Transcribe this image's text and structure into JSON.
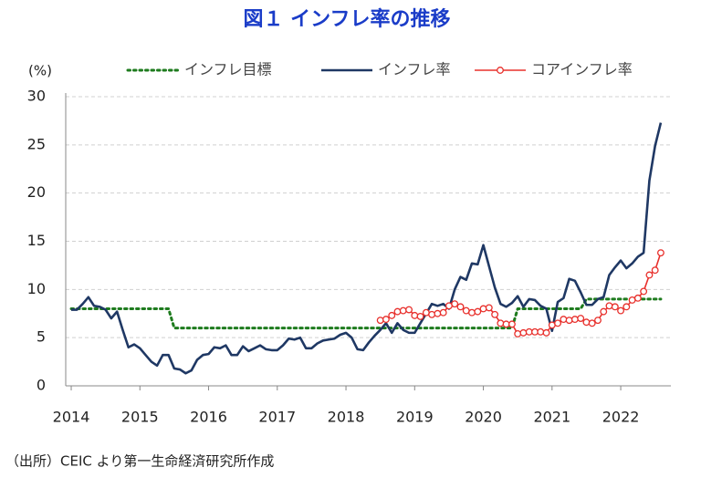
{
  "chart_data": {
    "type": "line",
    "title": "図１ インフレ率の推移",
    "y_label": "(%)",
    "source": "（出所）CEIC より第一生命経済研究所作成",
    "x": [
      2014,
      2014.083,
      2014.167,
      2014.25,
      2014.333,
      2014.417,
      2014.5,
      2014.583,
      2014.667,
      2014.75,
      2014.833,
      2014.917,
      2015,
      2015.083,
      2015.167,
      2015.25,
      2015.333,
      2015.417,
      2015.5,
      2015.583,
      2015.667,
      2015.75,
      2015.833,
      2015.917,
      2016,
      2016.083,
      2016.167,
      2016.25,
      2016.333,
      2016.417,
      2016.5,
      2016.583,
      2016.667,
      2016.75,
      2016.833,
      2016.917,
      2017,
      2017.083,
      2017.167,
      2017.25,
      2017.333,
      2017.417,
      2017.5,
      2017.583,
      2017.667,
      2017.75,
      2017.833,
      2017.917,
      2018,
      2018.083,
      2018.167,
      2018.25,
      2018.333,
      2018.417,
      2018.5,
      2018.583,
      2018.667,
      2018.75,
      2018.833,
      2018.917,
      2019,
      2019.083,
      2019.167,
      2019.25,
      2019.333,
      2019.417,
      2019.5,
      2019.583,
      2019.667,
      2019.75,
      2019.833,
      2019.917,
      2020,
      2020.083,
      2020.167,
      2020.25,
      2020.333,
      2020.417,
      2020.5,
      2020.583,
      2020.667,
      2020.75,
      2020.833,
      2020.917,
      2021,
      2021.083,
      2021.167,
      2021.25,
      2021.333,
      2021.417,
      2021.5,
      2021.583,
      2021.667,
      2021.75,
      2021.833,
      2021.917,
      2022,
      2022.083,
      2022.167,
      2022.25,
      2022.333,
      2022.417,
      2022.5,
      2022.583
    ],
    "series": [
      {
        "name": "インフレ目標",
        "color": "#1e7b1e",
        "line_style": "dotted",
        "markers": false,
        "values": [
          8,
          8,
          8,
          8,
          8,
          8,
          8,
          8,
          8,
          8,
          8,
          8,
          8,
          8,
          8,
          8,
          8,
          8,
          6,
          6,
          6,
          6,
          6,
          6,
          6,
          6,
          6,
          6,
          6,
          6,
          6,
          6,
          6,
          6,
          6,
          6,
          6,
          6,
          6,
          6,
          6,
          6,
          6,
          6,
          6,
          6,
          6,
          6,
          6,
          6,
          6,
          6,
          6,
          6,
          6,
          6,
          6,
          6,
          6,
          6,
          6,
          6,
          6,
          6,
          6,
          6,
          6,
          6,
          6,
          6,
          6,
          6,
          6,
          6,
          6,
          6,
          6,
          6,
          8,
          8,
          8,
          8,
          8,
          8,
          8,
          8,
          8,
          8,
          8,
          8,
          9,
          9,
          9,
          9,
          9,
          9,
          9,
          9,
          9,
          9,
          9,
          9,
          9,
          9
        ]
      },
      {
        "name": "インフレ率",
        "color": "#1f3864",
        "line_style": "solid",
        "markers": false,
        "values": [
          7.9,
          7.9,
          8.5,
          9.2,
          8.3,
          8.2,
          7.9,
          7.0,
          7.7,
          5.8,
          4.0,
          4.3,
          3.9,
          3.2,
          2.5,
          2.1,
          3.2,
          3.2,
          1.8,
          1.7,
          1.3,
          1.6,
          2.7,
          3.2,
          3.3,
          4.0,
          3.9,
          4.2,
          3.2,
          3.2,
          4.1,
          3.6,
          3.9,
          4.2,
          3.8,
          3.7,
          3.7,
          4.2,
          4.9,
          4.8,
          5.0,
          3.9,
          3.9,
          4.4,
          4.7,
          4.8,
          4.9,
          5.3,
          5.5,
          5.0,
          3.8,
          3.7,
          4.5,
          5.2,
          5.8,
          6.5,
          5.5,
          6.5,
          5.8,
          5.5,
          5.5,
          6.5,
          7.5,
          8.5,
          8.3,
          8.5,
          8.0,
          10.0,
          11.3,
          11.0,
          12.7,
          12.6,
          14.6,
          12.4,
          10.2,
          8.5,
          8.2,
          8.6,
          9.3,
          8.2,
          9.0,
          8.9,
          8.3,
          8.0,
          5.7,
          8.7,
          9.1,
          11.1,
          10.9,
          9.7,
          8.4,
          8.4,
          9.0,
          9.2,
          11.5,
          12.3,
          13.0,
          12.2,
          12.7,
          13.4,
          13.8,
          21.3,
          24.9,
          27.3
        ]
      },
      {
        "name": "コアインフレ率",
        "color": "#e8302c",
        "line_style": "solid",
        "markers": true,
        "values": [
          null,
          null,
          null,
          null,
          null,
          null,
          null,
          null,
          null,
          null,
          null,
          null,
          null,
          null,
          null,
          null,
          null,
          null,
          null,
          null,
          null,
          null,
          null,
          null,
          null,
          null,
          null,
          null,
          null,
          null,
          null,
          null,
          null,
          null,
          null,
          null,
          null,
          null,
          null,
          null,
          null,
          null,
          null,
          null,
          null,
          null,
          null,
          null,
          null,
          null,
          null,
          null,
          null,
          null,
          6.8,
          6.9,
          7.3,
          7.7,
          7.8,
          7.9,
          7.3,
          7.2,
          7.6,
          7.4,
          7.5,
          7.6,
          8.3,
          8.5,
          8.2,
          7.8,
          7.6,
          7.7,
          8.0,
          8.1,
          7.4,
          6.5,
          6.4,
          6.4,
          5.4,
          5.5,
          5.6,
          5.6,
          5.6,
          5.5,
          6.3,
          6.5,
          6.9,
          6.8,
          6.9,
          7.0,
          6.6,
          6.5,
          6.8,
          7.7,
          8.3,
          8.2,
          7.8,
          8.2,
          8.9,
          9.1,
          9.8,
          11.5,
          12.0,
          13.8
        ]
      }
    ],
    "xlim": [
      2013.92,
      2022.73
    ],
    "xticks": [
      2014,
      2015,
      2016,
      2017,
      2018,
      2019,
      2020,
      2021,
      2022
    ],
    "ylim": [
      0,
      30
    ],
    "yticks": [
      0,
      5,
      10,
      15,
      20,
      25,
      30
    ],
    "grid": true
  }
}
